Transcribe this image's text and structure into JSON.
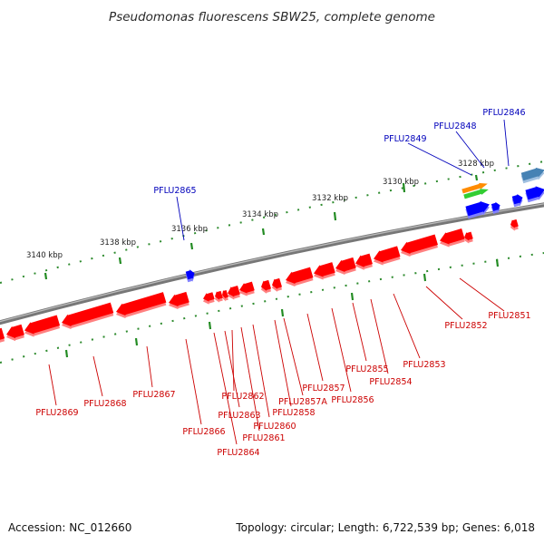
{
  "title": "Pseudomonas fluorescens SBW25, complete genome",
  "footer": {
    "accession": "Accession: NC_012660",
    "summary": "Topology: circular; Length: 6,722,539 bp; Genes: 6,018"
  },
  "colors": {
    "backbone": "#808080",
    "reverse_gene": "#ff0000",
    "forward_gene": "#0000ff",
    "reverse_label": "#cc0000",
    "forward_label": "#0000bb",
    "ticks": "#228b22",
    "rna_orange": "#ff8c00",
    "rna_green": "#32cd32",
    "gene_steelblue": "#4682b4"
  },
  "ticks": [
    "3128 kbp",
    "3130 kbp",
    "3132 kbp",
    "3134 kbp",
    "3136 kbp",
    "3138 kbp",
    "3140 kbp"
  ],
  "forward_labels": [
    "PFLU2846",
    "PFLU2848",
    "PFLU2849",
    "PFLU2865"
  ],
  "reverse_labels": [
    "PFLU2851",
    "PFLU2852",
    "PFLU2853",
    "PFLU2854",
    "PFLU2855",
    "PFLU2856",
    "PFLU2857",
    "PFLU2857A",
    "PFLU2858",
    "PFLU2860",
    "PFLU2861",
    "PFLU2862",
    "PFLU2863",
    "PFLU2864",
    "PFLU2866",
    "PFLU2867",
    "PFLU2868",
    "PFLU2869"
  ]
}
